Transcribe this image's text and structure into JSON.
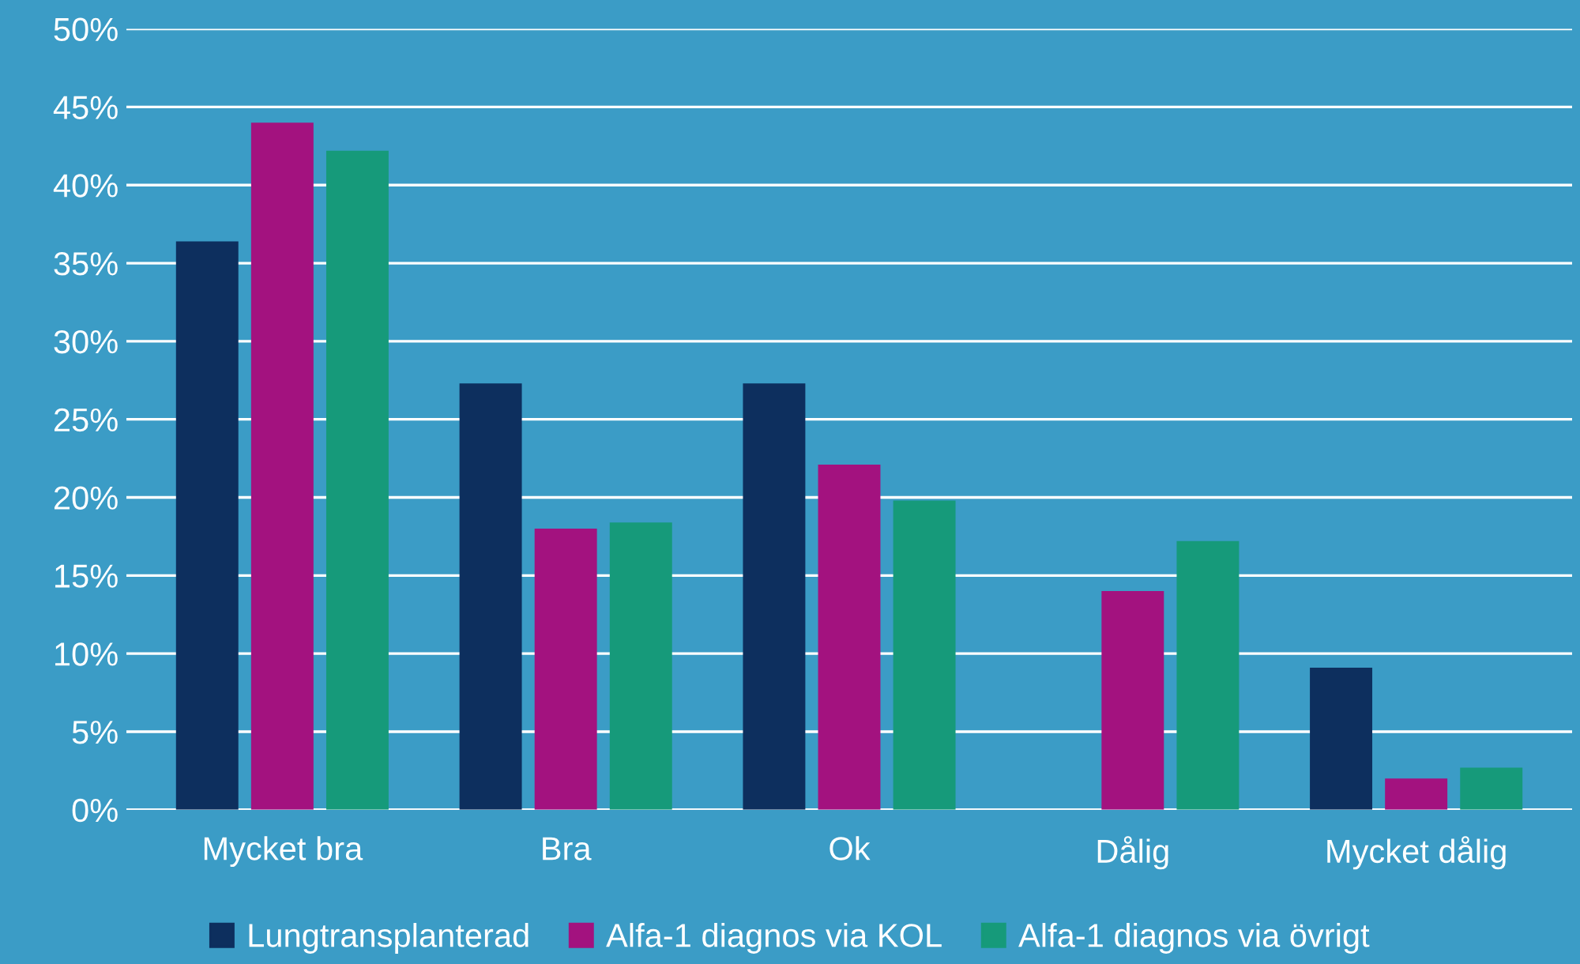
{
  "chart_data": {
    "type": "bar",
    "categories": [
      "Mycket bra",
      "Bra",
      "Ok",
      "Dålig",
      "Mycket dålig"
    ],
    "series": [
      {
        "name": "Lungtransplanterad",
        "color": "#0d2f5e",
        "values": [
          36.4,
          27.3,
          27.3,
          0,
          9.1
        ]
      },
      {
        "name": "Alfa-1 diagnos via KOL",
        "color": "#a3127f",
        "values": [
          44.0,
          18.0,
          22.1,
          14.0,
          2.0
        ]
      },
      {
        "name": "Alfa-1 diagnos via övrigt",
        "color": "#169a7a",
        "values": [
          42.2,
          18.4,
          19.8,
          17.2,
          2.7
        ]
      }
    ],
    "ylim": [
      0,
      50
    ],
    "yticks": [
      {
        "value": 0,
        "label": "0%"
      },
      {
        "value": 5,
        "label": "5%"
      },
      {
        "value": 10,
        "label": "10%"
      },
      {
        "value": 15,
        "label": "15%"
      },
      {
        "value": 20,
        "label": "20%"
      },
      {
        "value": 25,
        "label": "25%"
      },
      {
        "value": 30,
        "label": "30%"
      },
      {
        "value": 35,
        "label": "35%"
      },
      {
        "value": 40,
        "label": "40%"
      },
      {
        "value": 45,
        "label": "45%"
      },
      {
        "value": 50,
        "label": "50%"
      }
    ],
    "grid": "y",
    "legend": "bottom"
  }
}
